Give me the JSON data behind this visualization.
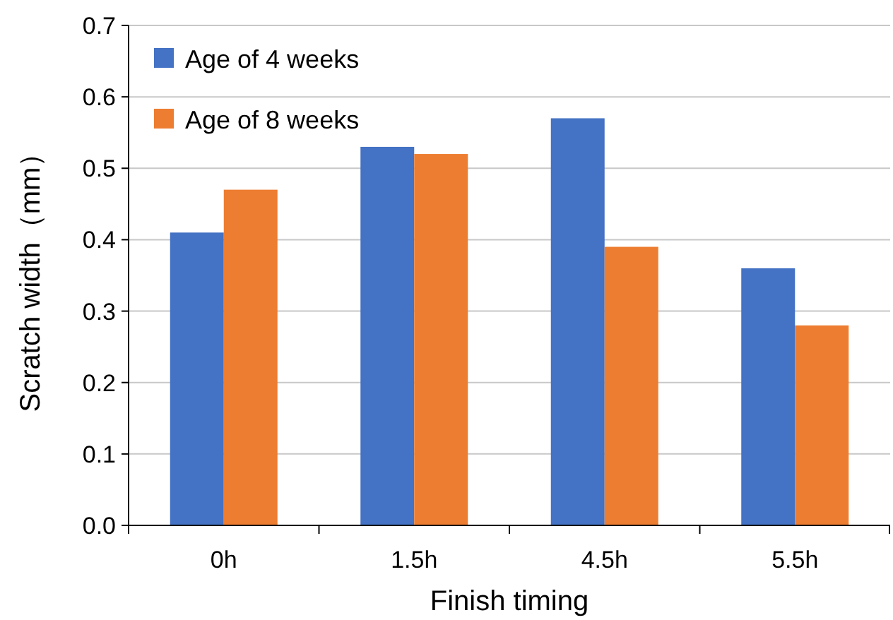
{
  "chart_data": {
    "type": "bar",
    "xlabel": "Finish timing",
    "ylabel": "Scratch width（mm）",
    "categories": [
      "0h",
      "1.5h",
      "4.5h",
      "5.5h"
    ],
    "series": [
      {
        "name": "Age of 4 weeks",
        "color": "#4472c4",
        "values": [
          0.41,
          0.53,
          0.57,
          0.36
        ]
      },
      {
        "name": "Age of 8 weeks",
        "color": "#ed7d31",
        "values": [
          0.47,
          0.52,
          0.39,
          0.28
        ]
      }
    ],
    "ylim": [
      0,
      0.7
    ],
    "yticks": [
      {
        "value": 0,
        "label": "0.0"
      },
      0.1,
      0.2,
      0.3,
      0.4,
      0.5,
      0.6,
      0.7
    ],
    "grid": "y",
    "legend": "top left"
  }
}
